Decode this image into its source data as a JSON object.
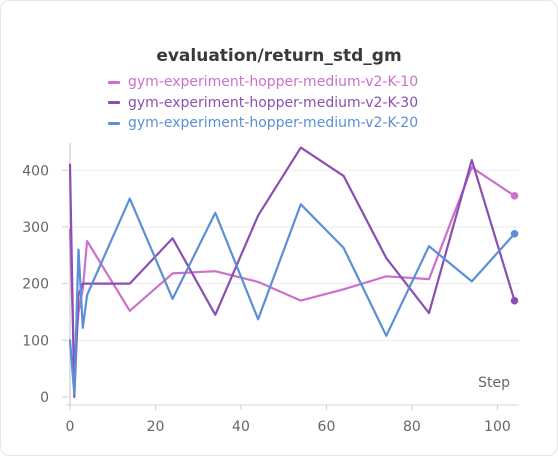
{
  "chart_data": {
    "type": "line",
    "title": "evaluation/return_std_gm",
    "xlabel": "Step",
    "ylabel": "",
    "xlim": [
      0,
      105
    ],
    "ylim": [
      0,
      440
    ],
    "xticks": [
      0,
      20,
      40,
      60,
      80,
      100
    ],
    "yticks": [
      0,
      100,
      200,
      300,
      400
    ],
    "grid": "horizontal",
    "legend_position": "top",
    "series": [
      {
        "name": "gym-experiment-hopper-medium-v2-K-10",
        "color": "#cc70cc",
        "x": [
          0,
          1,
          2,
          3,
          4,
          14,
          24,
          34,
          44,
          54,
          64,
          74,
          84,
          94,
          104
        ],
        "y": [
          295,
          50,
          150,
          190,
          275,
          152,
          218,
          222,
          203,
          170,
          190,
          213,
          208,
          405,
          355
        ]
      },
      {
        "name": "gym-experiment-hopper-medium-v2-K-30",
        "color": "#8a4fb0",
        "x": [
          0,
          1,
          2,
          3,
          4,
          14,
          24,
          34,
          44,
          54,
          64,
          74,
          84,
          94,
          104
        ],
        "y": [
          410,
          0,
          180,
          200,
          200,
          200,
          280,
          145,
          320,
          440,
          390,
          245,
          148,
          418,
          170
        ]
      },
      {
        "name": "gym-experiment-hopper-medium-v2-K-20",
        "color": "#5b8fd6",
        "x": [
          0,
          1,
          2,
          3,
          4,
          14,
          24,
          34,
          44,
          54,
          64,
          74,
          84,
          94,
          104
        ],
        "y": [
          100,
          5,
          260,
          122,
          180,
          350,
          173,
          325,
          137,
          340,
          263,
          108,
          266,
          204,
          288
        ]
      }
    ]
  }
}
